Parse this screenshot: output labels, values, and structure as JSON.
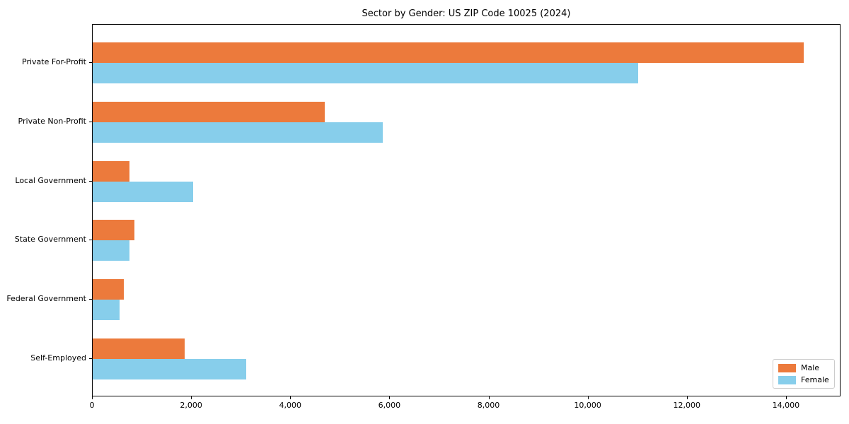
{
  "chart_data": {
    "type": "bar",
    "orientation": "horizontal",
    "title": "Sector by Gender: US ZIP Code 10025 (2024)",
    "categories": [
      "Private For-Profit",
      "Private Non-Profit",
      "Local Government",
      "State Government",
      "Federal Government",
      "Self-Employed"
    ],
    "series": [
      {
        "name": "Male",
        "color": "#ec7a3c",
        "values": [
          14370,
          4690,
          740,
          840,
          630,
          1860
        ]
      },
      {
        "name": "Female",
        "color": "#87ceeb",
        "values": [
          11020,
          5860,
          2030,
          740,
          540,
          3110
        ]
      }
    ],
    "xlabel": "",
    "ylabel": "",
    "xlim": [
      0,
      15100
    ],
    "xticks": [
      0,
      2000,
      4000,
      6000,
      8000,
      10000,
      12000,
      14000
    ],
    "grid": false,
    "legend": {
      "position": "lower right"
    },
    "colors": {
      "spine": "#000000",
      "legend_border": "#cccccc",
      "background": "#ffffff",
      "text": "#000000"
    }
  }
}
